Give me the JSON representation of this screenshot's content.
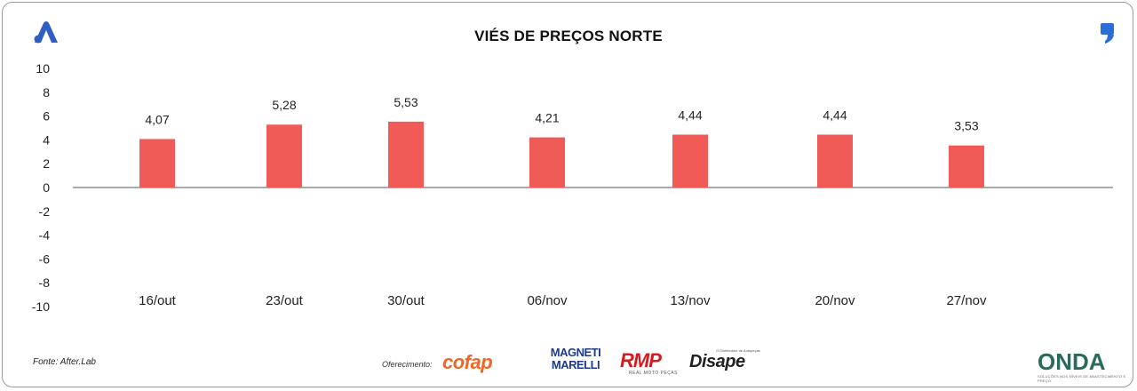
{
  "header": {
    "title": "VIÉS DE PREÇOS NORTE"
  },
  "chart_data": {
    "type": "bar",
    "title": "VIÉS DE PREÇOS NORTE",
    "categories": [
      "16/out",
      "23/out",
      "30/out",
      "06/nov",
      "13/nov",
      "20/nov",
      "27/nov"
    ],
    "values": [
      4.07,
      5.28,
      5.53,
      4.21,
      4.44,
      4.44,
      3.53
    ],
    "value_labels": [
      "4,07",
      "5,28",
      "5,53",
      "4,21",
      "4,44",
      "4,44",
      "3,53"
    ],
    "ylim": [
      -10,
      10
    ],
    "yticks": [
      10,
      8,
      6,
      4,
      2,
      0,
      -2,
      -4,
      -6,
      -8,
      -10
    ],
    "ytick_labels": [
      "10",
      "8",
      "6",
      "4",
      "2",
      "0",
      "-2",
      "-4",
      "-6",
      "-8",
      "-10"
    ],
    "bar_color": "#f05a57",
    "grid": false,
    "legend": "none"
  },
  "footer": {
    "source": "Fonte: After.Lab",
    "offer_label": "Oferecimento:",
    "sponsors": {
      "cofap": "cofap",
      "magneti_line1": "MAGNETI",
      "magneti_line2": "MARELLI",
      "rmp": "RMP",
      "rmp_sub": "REAL MOTO PEÇAS",
      "disape": "Disape",
      "disape_sub": "O Distribuidor de Autopeças"
    },
    "onda": "ONDA",
    "onda_sub": "SOLUÇÕES NOS NÍVEIS DE ABASTECIMENTO E PREÇO"
  }
}
